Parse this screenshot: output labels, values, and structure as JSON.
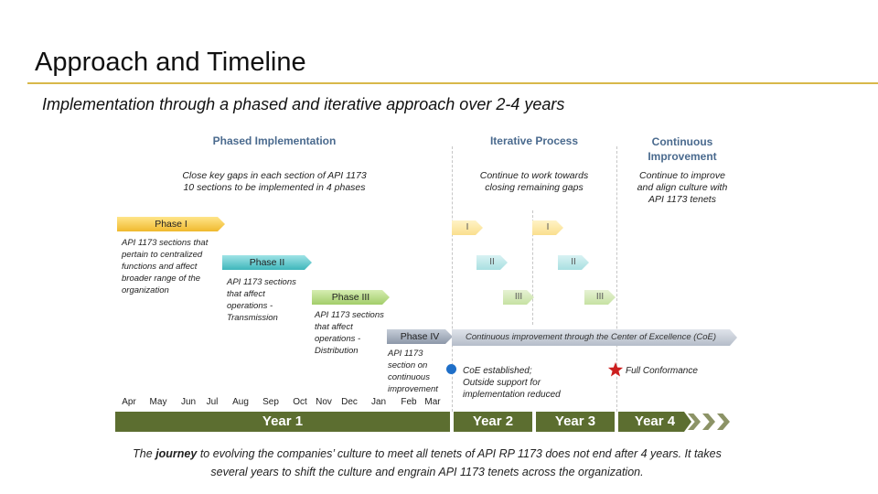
{
  "header": {
    "title": "Approach and Timeline",
    "subtitle": "Implementation through a phased and iterative approach over 2-4 years"
  },
  "columns": {
    "phased": {
      "title": "Phased Implementation",
      "note_line1": "Close key gaps in each section of API 1173",
      "note_line2": "10 sections to be implemented in 4 phases"
    },
    "iterative": {
      "title": "Iterative Process",
      "note_line1": "Continue to work towards",
      "note_line2": "closing remaining gaps"
    },
    "continuous": {
      "title_line1": "Continuous",
      "title_line2": "Improvement",
      "note_line1": "Continue to improve",
      "note_line2": "and align culture with",
      "note_line3": "API 1173 tenets"
    }
  },
  "phases": [
    {
      "label": "Phase I",
      "desc": [
        "API 1173 sections that",
        "pertain to centralized",
        "functions and affect",
        "broader range of the",
        "organization"
      ]
    },
    {
      "label": "Phase II",
      "desc": [
        "API 1173 sections",
        "that affect",
        "operations -",
        "Transmission"
      ]
    },
    {
      "label": "Phase III",
      "desc": [
        "API 1173 sections",
        "that affect",
        "operations -",
        "Distribution"
      ]
    },
    {
      "label": "Phase IV",
      "desc": [
        "API 1173",
        "section on",
        "continuous",
        "improvement"
      ]
    }
  ],
  "iteration_labels": [
    "I",
    "II",
    "III"
  ],
  "coe_bar": "Continuous improvement through the Center of Excellence (CoE)",
  "milestones": {
    "coe": [
      "CoE established;",
      "Outside support for",
      "implementation reduced"
    ],
    "full": "Full Conformance"
  },
  "months": [
    "Apr",
    "May",
    "Jun",
    "Jul",
    "Aug",
    "Sep",
    "Oct",
    "Nov",
    "Dec",
    "Jan",
    "Feb",
    "Mar"
  ],
  "years": [
    "Year 1",
    "Year 2",
    "Year 3",
    "Year 4"
  ],
  "footer_text": {
    "part1": "The ",
    "emph": "journey",
    "part2": " to evolving the companies’ culture to meet all tenets of API RP 1173 does not end after 4 years. It takes several years to shift the culture and engrain API 1173 tenets across the organization."
  },
  "colors": {
    "title_rule": "#d8b84a",
    "header_blue": "#4a6a8e",
    "year_bar": "#5c6e30",
    "phase1": "#f0b92e",
    "phase2": "#3eb6bb",
    "phase3": "#a2cd6a",
    "phase4": "#8d98a9",
    "coe_dot": "#1f6fc8",
    "star": "#cc1f1f"
  },
  "icons": {
    "coe_marker": "blue-dot-icon",
    "conformance_marker": "red-star-icon",
    "continuation": "chevron-right-icon"
  }
}
